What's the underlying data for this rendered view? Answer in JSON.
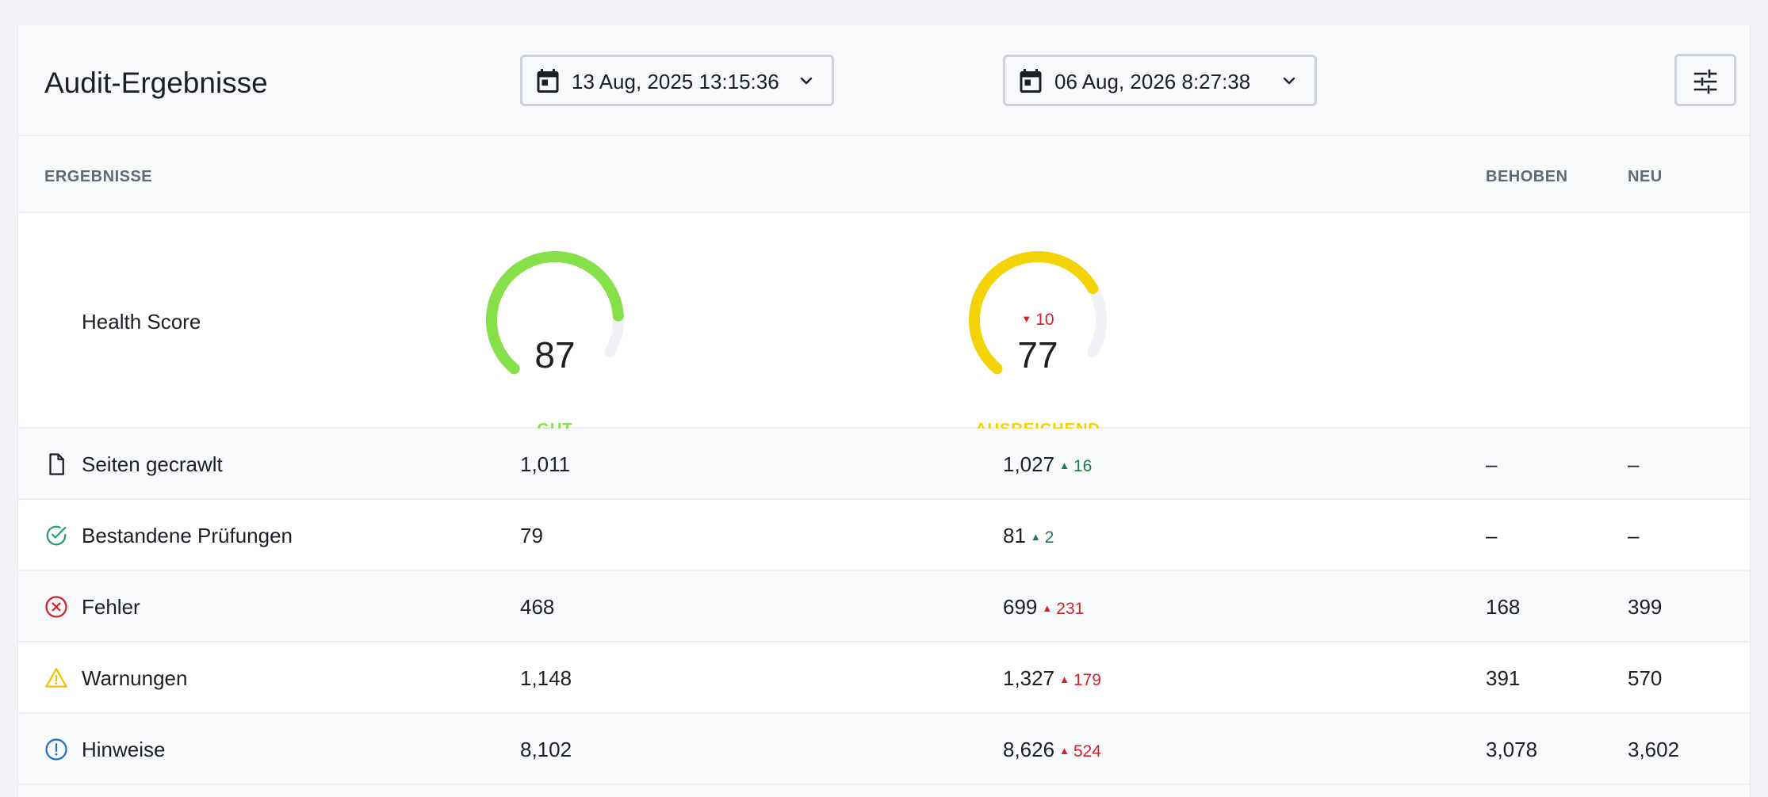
{
  "header": {
    "title": "Audit-Ergebnisse",
    "date_from": "13 Aug, 2025 13:15:36",
    "date_to": "06 Aug, 2026 8:27:38"
  },
  "columns": {
    "results": "ERGEBNISSE",
    "fixed": "BEHOBEN",
    "new": "NEU"
  },
  "health": {
    "label": "Health Score",
    "score1": {
      "value": "87",
      "rating": "GUT",
      "color": "#86e04a",
      "fraction": 0.87
    },
    "score2": {
      "value": "77",
      "delta": "10",
      "rating": "AUSREICHEND",
      "color": "#f3d206",
      "fraction": 0.77
    }
  },
  "rows": [
    {
      "label": "Seiten gecrawlt",
      "icon": "page-icon",
      "v1": "1,011",
      "v2": "1,027",
      "change": "16",
      "fixed": "–",
      "new": "–"
    },
    {
      "label": "Bestandene Prüfungen",
      "icon": "check-circle-icon",
      "v1": "79",
      "v2": "81",
      "change": "2",
      "fixed": "–",
      "new": "–"
    },
    {
      "label": "Fehler",
      "icon": "error-icon",
      "v1": "468",
      "v2": "699",
      "change": "231",
      "fixed": "168",
      "new": "399"
    },
    {
      "label": "Warnungen",
      "icon": "warning-icon",
      "v1": "1,148",
      "v2": "1,327",
      "change": "179",
      "fixed": "391",
      "new": "570"
    },
    {
      "label": "Hinweise",
      "icon": "info-icon",
      "v1": "8,102",
      "v2": "8,626",
      "change": "524",
      "fixed": "3,078",
      "new": "3,602"
    }
  ],
  "colors": {
    "good": "#86e04a",
    "fair": "#f3d206",
    "increase_good": "#1e7a4c",
    "increase_bad": "#d0212c"
  }
}
